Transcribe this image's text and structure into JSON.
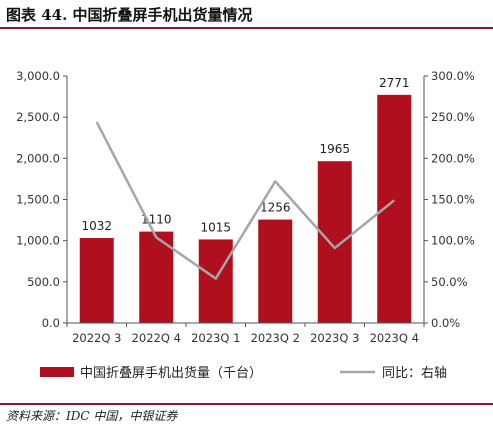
{
  "title": "图表 44. 中国折叠屏手机出货量情况",
  "source": "资料来源：IDC 中国，中银证券",
  "chart_data": {
    "type": "bar",
    "title": "图表 44. 中国折叠屏手机出货量情况",
    "categories": [
      "2022Q3",
      "2022Q4",
      "2023Q1",
      "2023Q2",
      "2023Q3",
      "2023Q4"
    ],
    "category_labels": [
      "2022Q 3",
      "2022Q 4",
      "2023Q 1",
      "2023Q 2",
      "2023Q 3",
      "2023Q 4"
    ],
    "series": [
      {
        "name": "中国折叠屏手机出货量（千台）",
        "type": "bar",
        "axis": "left",
        "color": "#b0101e",
        "values": [
          1032,
          1110,
          1015,
          1256,
          1965,
          2771
        ]
      },
      {
        "name": "同比：右轴",
        "type": "line",
        "axis": "right",
        "color": "#a6a6a6",
        "values": [
          244,
          104,
          54,
          172,
          91,
          149
        ]
      }
    ],
    "ylim": [
      0,
      3000
    ],
    "yticks": [
      0,
      500,
      1000,
      1500,
      2000,
      2500,
      3000
    ],
    "ytick_labels": [
      "0.0",
      "500.0",
      "1,000.0",
      "1,500.0",
      "2,000.0",
      "2,500.0",
      "3,000.0"
    ],
    "y2lim": [
      0,
      300
    ],
    "y2ticks": [
      0,
      50,
      100,
      150,
      200,
      250,
      300
    ],
    "y2tick_labels": [
      "0.0%",
      "50.0%",
      "100.0%",
      "150.0%",
      "200.0%",
      "250.0%",
      "300.0%"
    ],
    "data_labels": [
      "1032",
      "1110",
      "1015",
      "1256",
      "1965",
      "2771"
    ],
    "legend_position": "bottom",
    "grid": false
  }
}
